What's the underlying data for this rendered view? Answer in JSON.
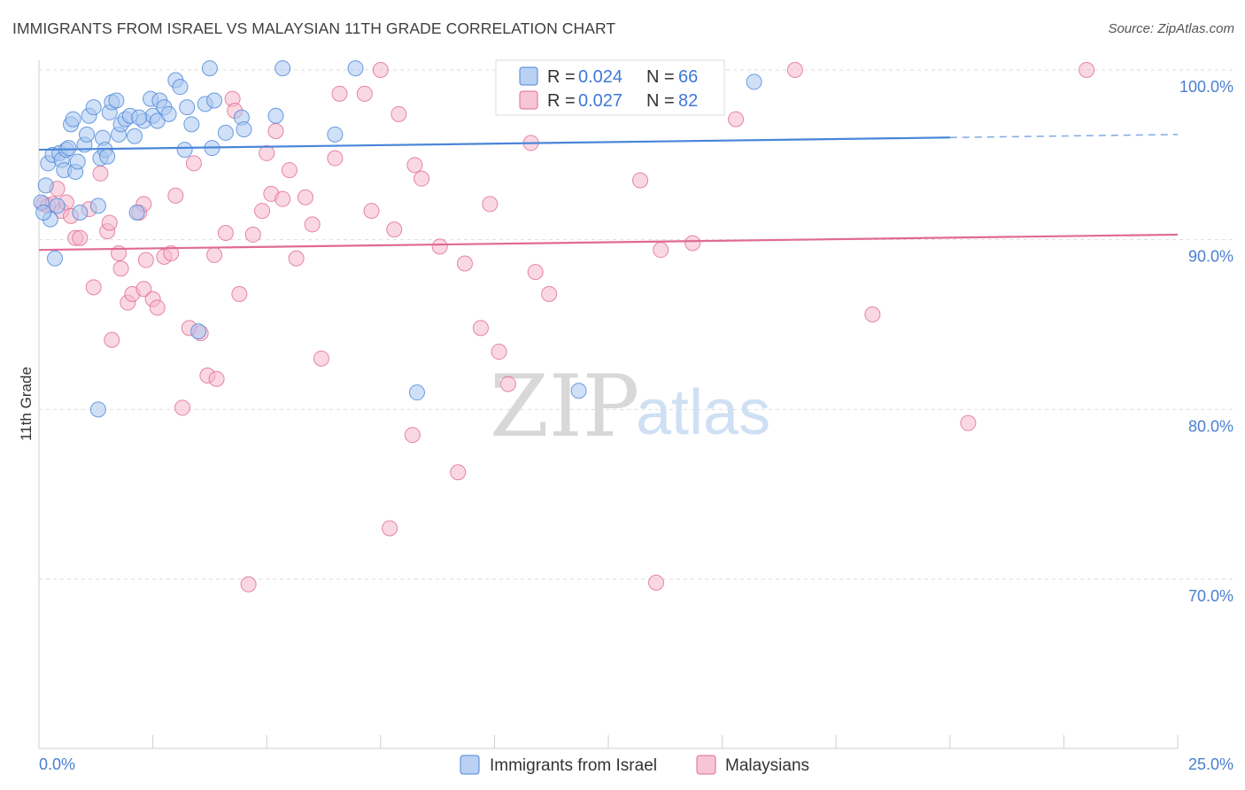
{
  "title": "IMMIGRANTS FROM ISRAEL VS MALAYSIAN 11TH GRADE CORRELATION CHART",
  "source": "Source: ZipAtlas.com",
  "watermark": {
    "zip": "ZIP",
    "atlas": "atlas"
  },
  "colors": {
    "blue": "#4a86d8",
    "blue_fill": "#a9c6f0",
    "pink": "#e06a93",
    "pink_fill": "#f5b8cb",
    "tick_text": "#4a7fd0"
  },
  "legend": {
    "rows": [
      {
        "r_label": "R = ",
        "r_value": "0.024",
        "n_label": "N = ",
        "n_value": "66"
      },
      {
        "r_label": "R = ",
        "r_value": "0.027",
        "n_label": "N = ",
        "n_value": "82"
      }
    ]
  },
  "chart_data": {
    "type": "scatter",
    "title": "IMMIGRANTS FROM ISRAEL VS MALAYSIAN 11TH GRADE CORRELATION CHART",
    "xlabel": "",
    "ylabel": "11th Grade",
    "xlim": [
      0,
      25
    ],
    "ylim": [
      60,
      101
    ],
    "x_tick_labels": [
      "0.0%",
      "25.0%"
    ],
    "y_ticks": [
      70,
      80,
      90,
      100
    ],
    "y_tick_labels": [
      "70.0%",
      "80.0%",
      "90.0%",
      "100.0%"
    ],
    "grid": "horizontal dashed",
    "legend_position": "top-center",
    "series": [
      {
        "name": "Immigrants from Israel",
        "color": "#4a86d8",
        "trend": {
          "x0": 0,
          "y0": 95.3,
          "x1": 25,
          "y1": 96.2
        },
        "points": [
          [
            0.15,
            93.2
          ],
          [
            0.2,
            94.5
          ],
          [
            0.25,
            91.2
          ],
          [
            0.3,
            95.0
          ],
          [
            0.35,
            88.9
          ],
          [
            0.45,
            95.1
          ],
          [
            0.5,
            94.7
          ],
          [
            0.55,
            94.1
          ],
          [
            0.6,
            95.3
          ],
          [
            0.7,
            96.8
          ],
          [
            0.75,
            97.1
          ],
          [
            0.8,
            94.0
          ],
          [
            0.85,
            94.6
          ],
          [
            0.9,
            91.6
          ],
          [
            1.0,
            95.6
          ],
          [
            1.05,
            96.2
          ],
          [
            1.1,
            97.3
          ],
          [
            1.2,
            97.8
          ],
          [
            1.35,
            94.8
          ],
          [
            1.4,
            96.0
          ],
          [
            1.45,
            95.3
          ],
          [
            1.55,
            97.5
          ],
          [
            1.6,
            98.1
          ],
          [
            1.7,
            98.2
          ],
          [
            1.75,
            96.2
          ],
          [
            1.8,
            96.8
          ],
          [
            1.9,
            97.1
          ],
          [
            2.0,
            97.3
          ],
          [
            2.1,
            96.1
          ],
          [
            2.15,
            91.6
          ],
          [
            2.3,
            97.0
          ],
          [
            2.45,
            98.3
          ],
          [
            2.5,
            97.3
          ],
          [
            2.6,
            97.0
          ],
          [
            2.65,
            98.2
          ],
          [
            2.75,
            97.8
          ],
          [
            2.85,
            97.4
          ],
          [
            3.0,
            99.4
          ],
          [
            3.1,
            99.0
          ],
          [
            3.2,
            95.3
          ],
          [
            3.25,
            97.8
          ],
          [
            3.35,
            96.8
          ],
          [
            3.5,
            84.6
          ],
          [
            3.65,
            98.0
          ],
          [
            3.75,
            100.1
          ],
          [
            3.8,
            95.4
          ],
          [
            3.85,
            98.2
          ],
          [
            4.1,
            96.3
          ],
          [
            4.45,
            97.2
          ],
          [
            4.5,
            96.5
          ],
          [
            5.2,
            97.3
          ],
          [
            5.35,
            100.1
          ],
          [
            6.5,
            96.2
          ],
          [
            6.95,
            100.1
          ],
          [
            0.05,
            92.2
          ],
          [
            0.1,
            91.6
          ],
          [
            1.3,
            92.0
          ],
          [
            1.3,
            80.0
          ],
          [
            8.3,
            81.0
          ],
          [
            11.85,
            81.1
          ],
          [
            15.7,
            99.3
          ],
          [
            10.5,
            100.1
          ],
          [
            0.4,
            92.0
          ],
          [
            0.65,
            95.4
          ],
          [
            1.5,
            94.9
          ],
          [
            2.2,
            97.2
          ]
        ]
      },
      {
        "name": "Malaysians",
        "color": "#e06a93",
        "trend": {
          "x0": 0,
          "y0": 89.4,
          "x1": 25,
          "y1": 90.3
        },
        "points": [
          [
            0.1,
            92.1
          ],
          [
            0.2,
            92.0
          ],
          [
            0.3,
            92.1
          ],
          [
            0.4,
            93.0
          ],
          [
            0.5,
            91.7
          ],
          [
            0.6,
            92.2
          ],
          [
            0.7,
            91.4
          ],
          [
            0.8,
            90.1
          ],
          [
            0.9,
            90.1
          ],
          [
            1.1,
            91.8
          ],
          [
            1.2,
            87.2
          ],
          [
            1.35,
            93.9
          ],
          [
            1.5,
            90.5
          ],
          [
            1.55,
            91.0
          ],
          [
            1.6,
            84.1
          ],
          [
            1.75,
            89.2
          ],
          [
            1.8,
            88.3
          ],
          [
            1.95,
            86.3
          ],
          [
            2.05,
            86.8
          ],
          [
            2.2,
            91.6
          ],
          [
            2.3,
            87.1
          ],
          [
            2.35,
            88.8
          ],
          [
            2.5,
            86.5
          ],
          [
            2.6,
            86.0
          ],
          [
            2.75,
            89.0
          ],
          [
            2.9,
            89.2
          ],
          [
            3.0,
            92.6
          ],
          [
            3.15,
            80.1
          ],
          [
            3.3,
            84.8
          ],
          [
            3.4,
            94.5
          ],
          [
            3.55,
            84.5
          ],
          [
            3.7,
            82.0
          ],
          [
            3.85,
            89.1
          ],
          [
            3.9,
            81.8
          ],
          [
            4.1,
            90.4
          ],
          [
            4.25,
            98.3
          ],
          [
            4.3,
            97.6
          ],
          [
            4.4,
            86.8
          ],
          [
            4.6,
            69.7
          ],
          [
            4.7,
            90.3
          ],
          [
            4.9,
            91.7
          ],
          [
            5.0,
            95.1
          ],
          [
            5.1,
            92.7
          ],
          [
            5.2,
            96.4
          ],
          [
            5.35,
            92.4
          ],
          [
            5.5,
            94.1
          ],
          [
            5.65,
            88.9
          ],
          [
            5.85,
            92.5
          ],
          [
            6.0,
            90.9
          ],
          [
            6.2,
            83.0
          ],
          [
            6.5,
            94.8
          ],
          [
            6.6,
            98.6
          ],
          [
            7.15,
            98.6
          ],
          [
            7.3,
            91.7
          ],
          [
            7.5,
            100.0
          ],
          [
            7.7,
            73.0
          ],
          [
            7.8,
            90.6
          ],
          [
            7.9,
            97.4
          ],
          [
            8.2,
            78.5
          ],
          [
            8.25,
            94.4
          ],
          [
            8.4,
            93.6
          ],
          [
            8.8,
            89.6
          ],
          [
            9.2,
            76.3
          ],
          [
            9.35,
            88.6
          ],
          [
            9.7,
            84.8
          ],
          [
            9.9,
            92.1
          ],
          [
            10.1,
            83.4
          ],
          [
            10.3,
            81.5
          ],
          [
            10.8,
            95.7
          ],
          [
            10.9,
            88.1
          ],
          [
            11.2,
            86.8
          ],
          [
            11.6,
            100.0
          ],
          [
            13.2,
            93.5
          ],
          [
            13.55,
            69.8
          ],
          [
            13.65,
            89.4
          ],
          [
            14.35,
            89.8
          ],
          [
            15.3,
            97.1
          ],
          [
            16.6,
            100.0
          ],
          [
            18.3,
            85.6
          ],
          [
            20.4,
            79.2
          ],
          [
            23.0,
            100.0
          ],
          [
            2.3,
            92.1
          ]
        ]
      }
    ]
  },
  "bottom_legend": [
    {
      "label": "Immigrants from Israel"
    },
    {
      "label": "Malaysians"
    }
  ]
}
